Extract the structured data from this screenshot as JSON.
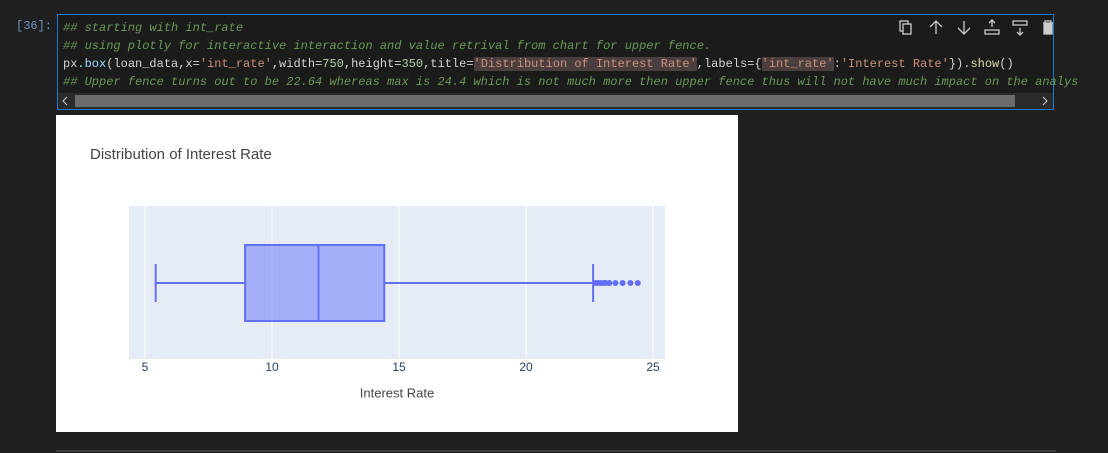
{
  "cell": {
    "prompt": "[36]:",
    "lines": [
      [
        {
          "text": "## starting with int_rate",
          "kind": "comment"
        }
      ],
      [
        {
          "text": "## using plotly for interactive interaction and value retrival from chart for upper fence.",
          "kind": "comment"
        }
      ],
      [
        {
          "text": "px",
          "kind": "plain"
        },
        {
          "text": ".box",
          "kind": "obj"
        },
        {
          "text": "(loan_data,x=",
          "kind": "plain"
        },
        {
          "text": "'int_rate'",
          "kind": "string"
        },
        {
          "text": ",width=",
          "kind": "plain"
        },
        {
          "text": "750",
          "kind": "number"
        },
        {
          "text": ",height=",
          "kind": "plain"
        },
        {
          "text": "350",
          "kind": "number"
        },
        {
          "text": ",title=",
          "kind": "plain"
        },
        {
          "text": "'Distribution of Interest Rate'",
          "kind": "match"
        },
        {
          "text": ",labels=",
          "kind": "plain"
        },
        {
          "text": "{",
          "kind": "plain"
        },
        {
          "text": "'int_rate'",
          "kind": "match"
        },
        {
          "text": ":",
          "kind": "plain"
        },
        {
          "text": "'Interest Rate'",
          "kind": "string"
        },
        {
          "text": "}).",
          "kind": "plain"
        },
        {
          "text": "show",
          "kind": "func"
        },
        {
          "text": "()",
          "kind": "plain"
        }
      ],
      [
        {
          "text": "## Upper fence turns out to be 22.64 whereas max is 24.4 which is not much more then upper fence thus will not have much impact on the analys",
          "kind": "comment"
        }
      ]
    ]
  },
  "chart_data": {
    "type": "box",
    "title": "Distribution of Interest Rate",
    "x_label": "Interest Rate",
    "lowerfence": 5.42,
    "q1": 8.94,
    "median": 11.83,
    "q3": 14.42,
    "upperfence": 22.64,
    "outliers": [
      22.74,
      22.85,
      22.95,
      23.06,
      23.13,
      23.28,
      23.52,
      23.8,
      24.11,
      24.4
    ],
    "color": "#636efa",
    "xlim": [
      4.37,
      25.47
    ],
    "xticks": [
      5,
      10,
      15,
      20,
      25
    ],
    "grid": true
  }
}
